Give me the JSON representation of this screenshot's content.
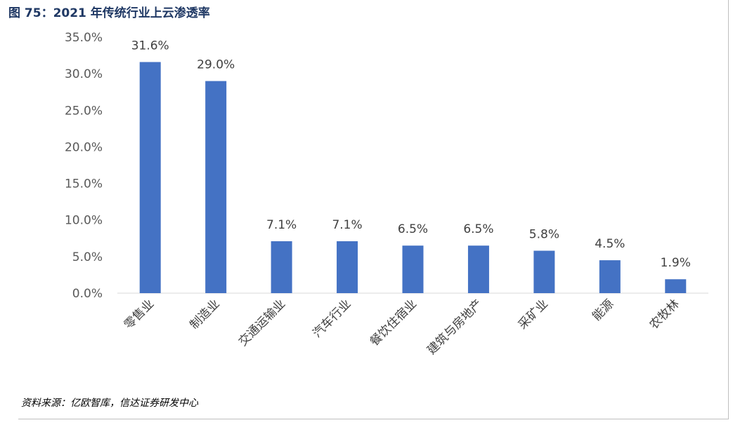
{
  "figure": {
    "title": "图 75：2021 年传统行业上云渗透率",
    "source": "资料来源：亿欧智库，信达证券研发中心"
  },
  "chart_data": {
    "type": "bar",
    "title": "",
    "xlabel": "",
    "ylabel": "",
    "categories": [
      "零售业",
      "制造业",
      "交通运输业",
      "汽车行业",
      "餐饮住宿业",
      "建筑与房地产",
      "采矿业",
      "能源",
      "农牧林"
    ],
    "values": [
      31.6,
      29.0,
      7.1,
      7.1,
      6.5,
      6.5,
      5.8,
      4.5,
      1.9
    ],
    "value_labels": [
      "31.6%",
      "29.0%",
      "7.1%",
      "7.1%",
      "6.5%",
      "6.5%",
      "5.8%",
      "4.5%",
      "1.9%"
    ],
    "ylim": [
      0,
      35
    ],
    "yticks": [
      0,
      5,
      10,
      15,
      20,
      25,
      30,
      35
    ],
    "ytick_labels": [
      "0.0%",
      "5.0%",
      "10.0%",
      "15.0%",
      "20.0%",
      "25.0%",
      "30.0%",
      "35.0%"
    ],
    "grid": false,
    "legend": "none",
    "bar_color": "#4472c4"
  }
}
